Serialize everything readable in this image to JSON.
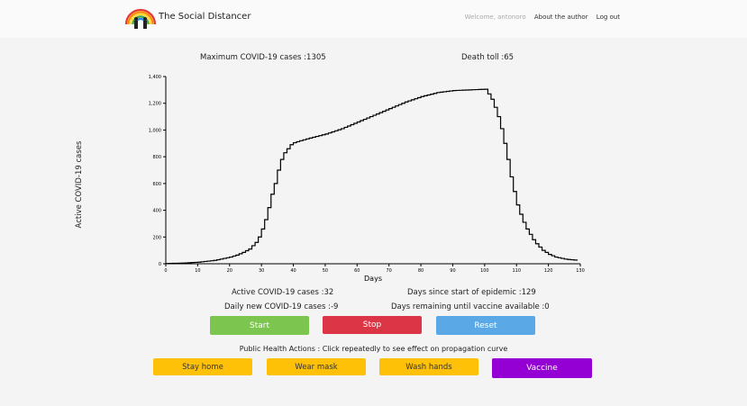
{
  "header": {
    "brand": "The Social Distancer",
    "welcome": "Welcome, antonoro",
    "about": "About the author",
    "logout": "Log out"
  },
  "stats": {
    "max_cases": "Maximum COVID-19 cases :1305",
    "death_toll": "Death toll :65",
    "active_cases": "Active COVID-19 cases :32",
    "daily_new": "Daily new COVID-19 cases :-9",
    "days_since": "Days since start of epidemic :129",
    "days_remaining": "Days remaining until vaccine available :0"
  },
  "controls": {
    "start": "Start",
    "stop": "Stop",
    "reset": "Reset",
    "actions_label": "Public Health Actions : Click repeatedly to see effect on propagation curve",
    "stay_home": "Stay home",
    "wear_mask": "Wear mask",
    "wash_hands": "Wash hands",
    "vaccine": "Vaccine"
  },
  "colors": {
    "start": "#7cc64f",
    "stop": "#dc3545",
    "reset": "#5aa9e6",
    "actions": "#ffc107",
    "vaccine": "#9400d3"
  },
  "chart_data": {
    "type": "line",
    "step": true,
    "xlabel": "Days",
    "ylabel": "Active COVID-19 cases",
    "xlim": [
      0,
      130
    ],
    "ylim": [
      0,
      1400
    ],
    "xticks": [
      "0",
      "10",
      "20",
      "30",
      "40",
      "50",
      "60",
      "70",
      "80",
      "90",
      "100",
      "110",
      "120",
      "130"
    ],
    "yticks": [
      "0",
      "200",
      "400",
      "600",
      "800",
      "1,000",
      "1,200",
      "1,400"
    ],
    "series": [
      {
        "x": [
          0,
          5,
          10,
          15,
          20,
          22,
          24,
          26,
          28,
          29,
          30,
          31,
          32,
          33,
          34,
          35,
          36,
          37,
          38,
          39,
          40,
          42,
          45,
          50,
          55,
          60,
          65,
          70,
          75,
          80,
          85,
          90,
          95,
          100,
          101,
          102,
          103,
          104,
          105,
          106,
          107,
          108,
          109,
          110,
          111,
          112,
          113,
          114,
          115,
          116,
          117,
          118,
          119,
          120,
          121,
          122,
          123,
          124,
          125,
          126,
          127,
          128,
          129
        ],
        "y": [
          2,
          5,
          12,
          25,
          50,
          65,
          85,
          110,
          160,
          200,
          260,
          330,
          420,
          520,
          600,
          700,
          780,
          830,
          860,
          890,
          905,
          920,
          940,
          970,
          1010,
          1060,
          1110,
          1160,
          1210,
          1250,
          1280,
          1295,
          1300,
          1305,
          1270,
          1230,
          1170,
          1100,
          1010,
          900,
          780,
          650,
          540,
          440,
          370,
          310,
          260,
          220,
          180,
          150,
          125,
          100,
          85,
          70,
          60,
          50,
          45,
          40,
          35,
          32,
          30,
          28,
          32
        ]
      }
    ]
  }
}
